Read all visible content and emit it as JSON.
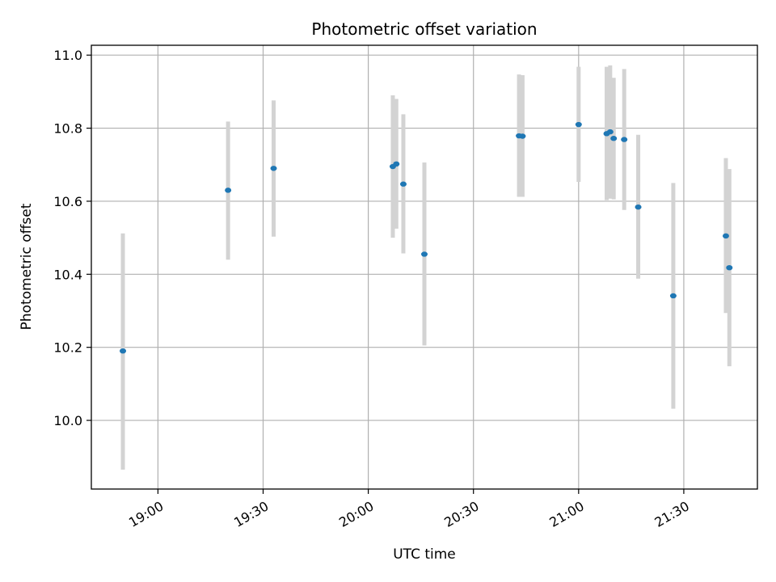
{
  "chart_data": {
    "type": "scatter",
    "title": "Photometric offset variation",
    "xlabel": "UTC time",
    "ylabel": "Photometric offset",
    "x_tick_labels": [
      "19:00",
      "19:30",
      "20:00",
      "20:30",
      "21:00",
      "21:30"
    ],
    "x_tick_values": [
      "19:00",
      "19:30",
      "20:00",
      "20:30",
      "21:00",
      "21:30"
    ],
    "y_ticks": [
      10.0,
      10.2,
      10.4,
      10.6,
      10.8,
      11.0
    ],
    "y_tick_labels": [
      "10.0",
      "10.2",
      "10.4",
      "10.6",
      "10.8",
      "11.0"
    ],
    "xlim": [
      "18:41",
      "21:51"
    ],
    "ylim": [
      9.812,
      11.027
    ],
    "grid": true,
    "point_color": "#1f77b4",
    "errorbar_color": "#d3d3d3",
    "points": [
      {
        "x": "18:50",
        "y": 10.19,
        "err_low": 9.865,
        "err_high": 10.512
      },
      {
        "x": "19:20",
        "y": 10.63,
        "err_low": 10.44,
        "err_high": 10.818
      },
      {
        "x": "19:33",
        "y": 10.69,
        "err_low": 10.503,
        "err_high": 10.876
      },
      {
        "x": "20:07",
        "y": 10.695,
        "err_low": 10.5,
        "err_high": 10.89
      },
      {
        "x": "20:08",
        "y": 10.702,
        "err_low": 10.525,
        "err_high": 10.88
      },
      {
        "x": "20:10",
        "y": 10.647,
        "err_low": 10.457,
        "err_high": 10.838
      },
      {
        "x": "20:16",
        "y": 10.455,
        "err_low": 10.205,
        "err_high": 10.706
      },
      {
        "x": "20:43",
        "y": 10.779,
        "err_low": 10.612,
        "err_high": 10.947
      },
      {
        "x": "20:44",
        "y": 10.778,
        "err_low": 10.612,
        "err_high": 10.945
      },
      {
        "x": "21:00",
        "y": 10.81,
        "err_low": 10.653,
        "err_high": 10.968
      },
      {
        "x": "21:08",
        "y": 10.785,
        "err_low": 10.603,
        "err_high": 10.968
      },
      {
        "x": "21:09",
        "y": 10.79,
        "err_low": 10.607,
        "err_high": 10.972
      },
      {
        "x": "21:10",
        "y": 10.772,
        "err_low": 10.605,
        "err_high": 10.938
      },
      {
        "x": "21:13",
        "y": 10.769,
        "err_low": 10.576,
        "err_high": 10.962
      },
      {
        "x": "21:17",
        "y": 10.584,
        "err_low": 10.388,
        "err_high": 10.782
      },
      {
        "x": "21:27",
        "y": 10.341,
        "err_low": 10.032,
        "err_high": 10.65
      },
      {
        "x": "21:42",
        "y": 10.505,
        "err_low": 10.294,
        "err_high": 10.718
      },
      {
        "x": "21:43",
        "y": 10.418,
        "err_low": 10.148,
        "err_high": 10.688
      }
    ]
  }
}
